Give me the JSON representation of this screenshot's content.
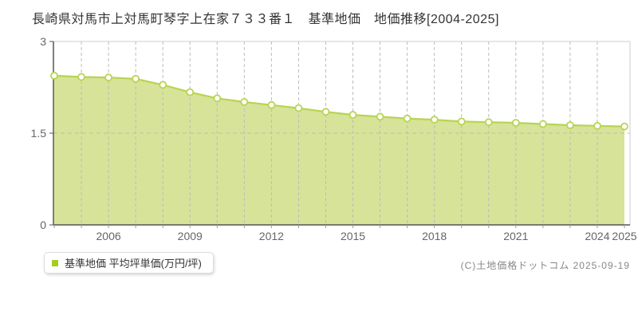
{
  "header": {
    "title": "長崎県対馬市上対馬町琴字上在家７３３番１　基準地価　地価推移[2004-2025]"
  },
  "legend": {
    "label": "基準地価 平均坪単価(万円/坪)",
    "marker_color": "#a6cc21"
  },
  "footer": {
    "copyright": "(C)土地価格ドットコム 2025-09-19"
  },
  "chart_data": {
    "type": "area",
    "title": "長崎県対馬市上対馬町琴字上在家７３３番１　基準地価　地価推移[2004-2025]",
    "xlabel": "",
    "ylabel": "",
    "x": [
      2004,
      2005,
      2006,
      2007,
      2008,
      2009,
      2010,
      2011,
      2012,
      2013,
      2014,
      2015,
      2016,
      2017,
      2018,
      2019,
      2020,
      2021,
      2022,
      2023,
      2024,
      2025
    ],
    "series": [
      {
        "name": "基準地価 平均坪単価(万円/坪)",
        "values": [
          2.44,
          2.42,
          2.41,
          2.39,
          2.29,
          2.17,
          2.07,
          2.01,
          1.96,
          1.91,
          1.85,
          1.8,
          1.77,
          1.74,
          1.72,
          1.69,
          1.68,
          1.67,
          1.65,
          1.63,
          1.62,
          1.61
        ]
      }
    ],
    "ylim": [
      0,
      3
    ],
    "yticks": [
      3,
      1.5,
      0
    ],
    "ytick_labels": [
      "3",
      "1.5",
      "0"
    ],
    "xtick_years": [
      2006,
      2009,
      2012,
      2015,
      2018,
      2021,
      2024,
      2025
    ],
    "xtick_labels": [
      "2006",
      "2009",
      "2012",
      "2015",
      "2018",
      "2021",
      "2024",
      "2025"
    ],
    "grid": "vertical dashed line at every year 2005-2024, horizontal dashed line at 1.5",
    "legend_position": "bottom-left",
    "colors": {
      "area_fill": "#d7e398",
      "line": "#b8d452",
      "marker_fill": "#ffffff",
      "marker_stroke": "#b8d452",
      "grid": "#bcbcbc",
      "axis": "#555555",
      "tick": "#999999",
      "tick_label": "#666666",
      "plot_border": "#cccccc"
    }
  }
}
